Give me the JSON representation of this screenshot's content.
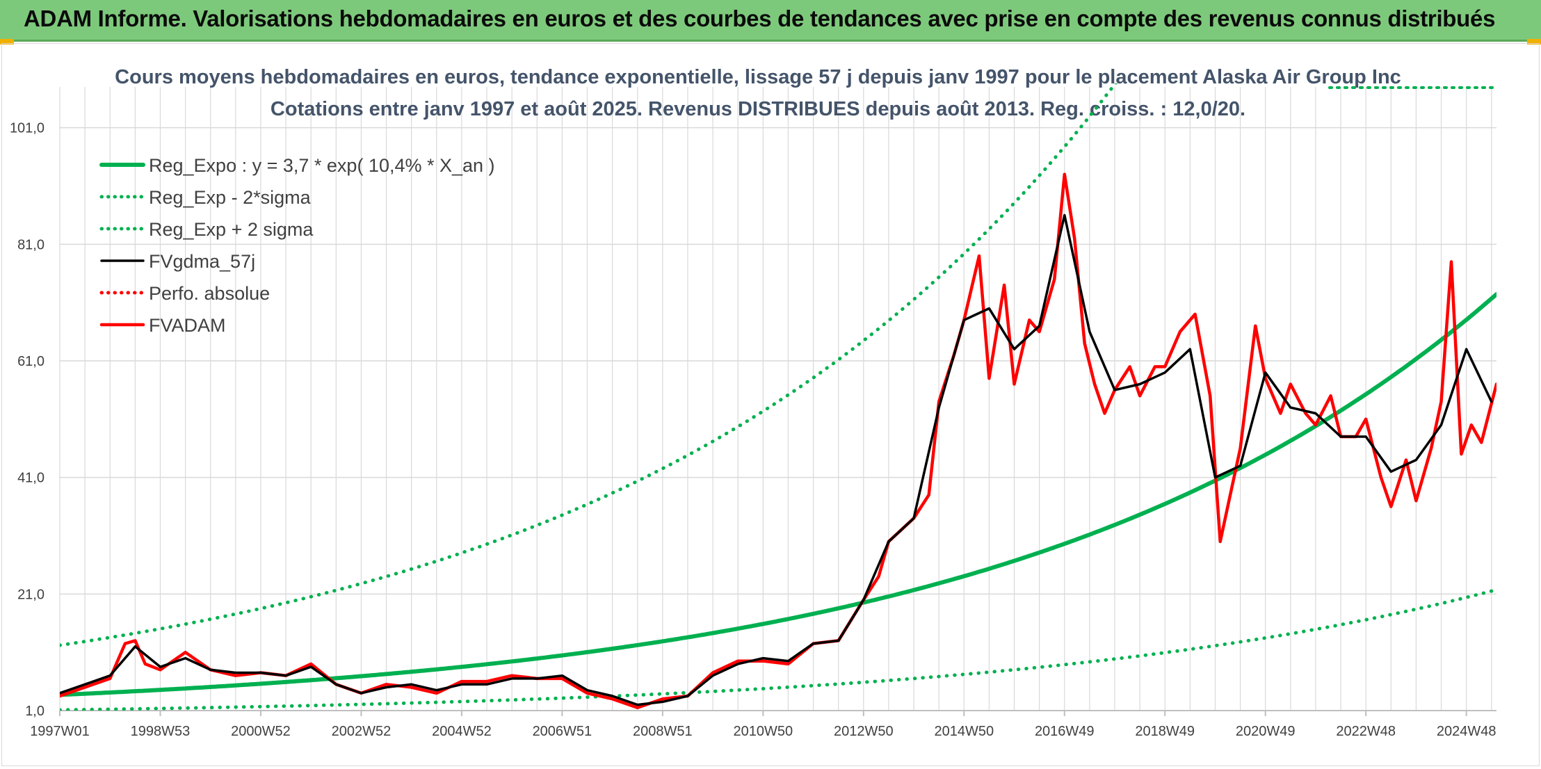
{
  "header": {
    "title": "ADAM Informe. Valorisations hebdomadaires en euros et des courbes de tendances avec prise en compte des revenus connus distribués"
  },
  "colors": {
    "header_bg": "#7dc97b",
    "reg_expo": "#00b050",
    "fvgdma": "#000000",
    "fvadam": "#ff0000",
    "grid": "#d9d9d9"
  },
  "chart_data": {
    "type": "line",
    "title_lines": [
      "Cours moyens hebdomadaires en euros, tendance exponentielle, lissage 57 j depuis janv 1997 pour le placement Alaska Air Group Inc",
      "Cotations entre janv 1997 et août 2025. Revenus DISTRIBUES depuis août 2013. Reg. croiss. : 12,0/20."
    ],
    "xlabel": "",
    "ylabel": "",
    "ylim": [
      1,
      108
    ],
    "xlim_years": [
      1997.0,
      2025.6
    ],
    "y_ticks": [
      "1,0",
      "21,0",
      "41,0",
      "61,0",
      "81,0",
      "101,0"
    ],
    "y_tick_values": [
      1,
      21,
      41,
      61,
      81,
      101
    ],
    "x_ticks": [
      "1997W01",
      "1998W53",
      "2000W52",
      "2002W52",
      "2004W52",
      "2006W51",
      "2008W51",
      "2010W50",
      "2012W50",
      "2014W50",
      "2016W49",
      "2018W49",
      "2020W49",
      "2022W48",
      "2024W48"
    ],
    "x_tick_years": [
      1997.0,
      1999.0,
      2001.0,
      2003.0,
      2005.0,
      2007.0,
      2009.0,
      2011.0,
      2013.0,
      2015.0,
      2017.0,
      2019.0,
      2021.0,
      2023.0,
      2025.0
    ],
    "grid": true,
    "legend_placement": "top-left",
    "series": [
      {
        "name": "Reg_Expo : y = 3,7 * exp( 10,4% *  X_an )",
        "style": "solid-thick",
        "color": "#00b050",
        "function": {
          "kind": "exp",
          "a": 3.7,
          "b": 0.104,
          "x0": 1997.0,
          "factor": 1.0
        }
      },
      {
        "name": "Reg_Exp - 2*sigma",
        "style": "dotted",
        "color": "#00b050",
        "function": {
          "kind": "exp",
          "a": 3.7,
          "b": 0.104,
          "x0": 1997.0,
          "factor": 0.3
        }
      },
      {
        "name": "Reg_Exp + 2 sigma",
        "style": "dotted",
        "color": "#00b050",
        "function": {
          "kind": "exp",
          "a": 3.7,
          "b": 0.104,
          "x0": 1997.0,
          "factor": 3.3
        }
      },
      {
        "name": "FVgdma_57j",
        "style": "solid",
        "color": "#000000",
        "x": [
          1997.0,
          1997.5,
          1998.0,
          1998.5,
          1999.0,
          1999.5,
          2000.0,
          2000.5,
          2001.0,
          2001.5,
          2002.0,
          2002.5,
          2003.0,
          2003.5,
          2004.0,
          2004.5,
          2005.0,
          2005.5,
          2006.0,
          2006.5,
          2007.0,
          2007.5,
          2008.0,
          2008.5,
          2009.0,
          2009.5,
          2010.0,
          2010.5,
          2011.0,
          2011.5,
          2012.0,
          2012.5,
          2013.0,
          2013.5,
          2014.0,
          2014.5,
          2015.0,
          2015.5,
          2016.0,
          2016.5,
          2017.0,
          2017.5,
          2018.0,
          2018.5,
          2019.0,
          2019.5,
          2020.0,
          2020.5,
          2021.0,
          2021.5,
          2022.0,
          2022.5,
          2023.0,
          2023.5,
          2024.0,
          2024.5,
          2025.0,
          2025.5
        ],
        "values": [
          4.0,
          5.5,
          7.0,
          12.0,
          8.5,
          10.0,
          8.0,
          7.5,
          7.5,
          7.0,
          8.5,
          5.5,
          4.0,
          5.0,
          5.5,
          4.5,
          5.5,
          5.5,
          6.5,
          6.5,
          7.0,
          4.5,
          3.5,
          2.0,
          2.5,
          3.5,
          7.0,
          9.0,
          10.0,
          9.5,
          12.5,
          13.0,
          20.0,
          30.0,
          34.0,
          53.0,
          68.0,
          70.0,
          63.0,
          67.0,
          86.0,
          66.0,
          56.0,
          57.0,
          59.0,
          63.0,
          41.0,
          43.0,
          59.0,
          53.0,
          52.0,
          48.0,
          48.0,
          42.0,
          44.0,
          50.0,
          63.0,
          54.0
        ]
      },
      {
        "name": "Perfo. absolue",
        "style": "dotted",
        "color": "#ff0000",
        "x": [],
        "values": []
      },
      {
        "name": "FVADAM",
        "style": "solid-thick",
        "color": "#ff0000",
        "x": [
          1997.0,
          1997.5,
          1998.0,
          1998.3,
          1998.5,
          1998.7,
          1999.0,
          1999.5,
          2000.0,
          2000.5,
          2001.0,
          2001.5,
          2002.0,
          2002.5,
          2003.0,
          2003.5,
          2004.0,
          2004.5,
          2005.0,
          2005.5,
          2006.0,
          2006.5,
          2007.0,
          2007.5,
          2008.0,
          2008.5,
          2009.0,
          2009.5,
          2010.0,
          2010.5,
          2011.0,
          2011.5,
          2012.0,
          2012.5,
          2013.0,
          2013.3,
          2013.5,
          2014.0,
          2014.3,
          2014.5,
          2014.8,
          2015.0,
          2015.3,
          2015.5,
          2015.8,
          2016.0,
          2016.3,
          2016.5,
          2016.8,
          2017.0,
          2017.2,
          2017.4,
          2017.6,
          2017.8,
          2018.0,
          2018.3,
          2018.5,
          2018.8,
          2019.0,
          2019.3,
          2019.6,
          2019.9,
          2020.1,
          2020.3,
          2020.5,
          2020.8,
          2021.0,
          2021.3,
          2021.5,
          2021.8,
          2022.0,
          2022.3,
          2022.5,
          2022.8,
          2023.0,
          2023.3,
          2023.5,
          2023.8,
          2024.0,
          2024.3,
          2024.5,
          2024.7,
          2024.9,
          2025.1,
          2025.3,
          2025.6
        ],
        "values": [
          3.5,
          5.0,
          6.5,
          12.5,
          13.0,
          9.0,
          8.0,
          11.0,
          8.0,
          7.0,
          7.5,
          7.0,
          9.0,
          5.5,
          4.0,
          5.5,
          5.0,
          4.0,
          6.0,
          6.0,
          7.0,
          6.5,
          6.5,
          4.0,
          3.0,
          1.5,
          3.0,
          3.5,
          7.5,
          9.5,
          9.5,
          9.0,
          12.5,
          13.0,
          20.0,
          24.0,
          30.0,
          34.0,
          38.0,
          54.0,
          62.0,
          68.0,
          79.0,
          58.0,
          74.0,
          57.0,
          68.0,
          66.0,
          75.0,
          93.0,
          82.0,
          64.0,
          57.0,
          52.0,
          56.0,
          60.0,
          55.0,
          60.0,
          60.0,
          66.0,
          69.0,
          55.0,
          30.0,
          38.0,
          46.0,
          67.0,
          58.0,
          52.0,
          57.0,
          52.0,
          50.0,
          55.0,
          48.0,
          48.0,
          51.0,
          41.0,
          36.0,
          44.0,
          37.0,
          46.0,
          54.0,
          78.0,
          45.0,
          50.0,
          47.0,
          57.0
        ]
      }
    ]
  }
}
